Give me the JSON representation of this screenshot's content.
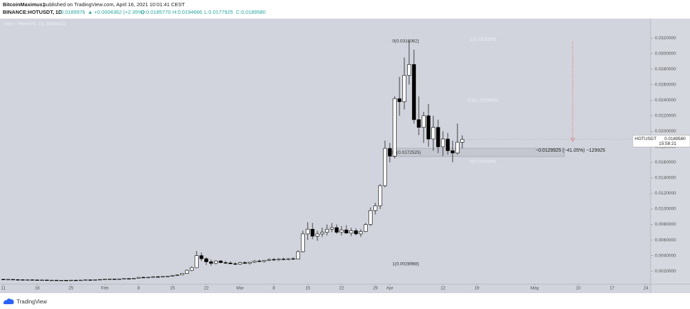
{
  "header": {
    "author": "BitcoinMaximus1",
    "published": "published on TradingView.com, April 16, 2021 10:01:41 CEST",
    "symbol": "BINANCE:HOTUSDT, 1D",
    "price": "0.0189976",
    "change": "▲ +0.0004362 (+2.35%)",
    "open": "O:0.0185770",
    "high": "H:0.0194666",
    "low": "L:0.0177925",
    "close": "C:0.0189580"
  },
  "footer": {
    "brand": "TradingView"
  },
  "chart_data": {
    "type": "candlestick",
    "watermark": "Holo / TetherUS, 1D, BINANCE",
    "x": [
      0,
      1,
      2,
      3,
      4,
      5,
      6,
      7,
      8,
      9,
      10,
      11,
      12,
      13,
      14,
      15,
      16,
      17,
      18,
      19,
      20,
      21,
      22,
      23,
      24,
      25,
      26,
      27,
      28,
      29,
      30,
      31,
      32,
      33,
      34,
      35,
      36,
      37,
      38,
      39,
      40,
      41,
      42,
      43,
      44,
      45,
      46,
      47,
      48,
      49,
      50,
      51,
      52,
      53,
      54,
      55,
      56,
      57,
      58,
      59,
      60,
      61,
      62,
      63,
      64,
      65,
      66,
      67,
      68,
      69,
      70,
      71,
      72,
      73,
      74,
      75,
      76,
      77,
      78,
      79,
      80,
      81,
      82,
      83,
      84,
      85,
      86,
      87,
      88,
      89,
      90,
      91,
      92,
      93,
      94,
      95
    ],
    "open": [
      0.00095,
      0.00092,
      0.00094,
      0.00091,
      0.0009,
      0.00088,
      0.00089,
      0.00087,
      0.00085,
      0.00086,
      0.00083,
      0.00084,
      0.00081,
      0.00083,
      0.00082,
      0.00084,
      0.00083,
      0.00085,
      0.00088,
      0.00087,
      0.0009,
      0.00093,
      0.00096,
      0.00098,
      0.00097,
      0.001,
      0.00104,
      0.00102,
      0.00108,
      0.0012,
      0.00116,
      0.00121,
      0.00128,
      0.00124,
      0.00131,
      0.00135,
      0.00145,
      0.00152,
      0.0017,
      0.0021,
      0.00245,
      0.004,
      0.0036,
      0.0032,
      0.003,
      0.0033,
      0.0031,
      0.00305,
      0.00295,
      0.0029,
      0.0031,
      0.003,
      0.00315,
      0.0033,
      0.00325,
      0.0034,
      0.0035,
      0.00345,
      0.00355,
      0.0035,
      0.0036,
      0.00355,
      0.0045,
      0.0068,
      0.0074,
      0.0065,
      0.0068,
      0.007,
      0.0074,
      0.0076,
      0.007,
      0.0073,
      0.0069,
      0.0072,
      0.0068,
      0.0071,
      0.008,
      0.0098,
      0.0104,
      0.013,
      0.0178,
      0.0168,
      0.0242,
      0.0238,
      0.0272,
      0.0286,
      0.0215,
      0.0205,
      0.022,
      0.019,
      0.0205,
      0.018,
      0.019,
      0.0175,
      0.0172,
      0.018577
    ],
    "high": [
      0.001,
      0.00098,
      0.00096,
      0.00095,
      0.00093,
      0.00092,
      0.00093,
      0.00091,
      0.00089,
      0.00088,
      0.00087,
      0.00086,
      0.00085,
      0.00086,
      0.00086,
      0.00088,
      0.00086,
      0.0009,
      0.00092,
      0.00091,
      0.00095,
      0.00098,
      0.001,
      0.00103,
      0.00102,
      0.00106,
      0.00108,
      0.0011,
      0.00125,
      0.0013,
      0.00124,
      0.00132,
      0.00136,
      0.00134,
      0.0014,
      0.0015,
      0.0016,
      0.00175,
      0.0022,
      0.0026,
      0.0046,
      0.0044,
      0.0038,
      0.0035,
      0.0034,
      0.00345,
      0.0033,
      0.00325,
      0.00315,
      0.0032,
      0.00325,
      0.0032,
      0.0034,
      0.0035,
      0.00345,
      0.00365,
      0.0037,
      0.00365,
      0.00375,
      0.0037,
      0.0038,
      0.0047,
      0.0072,
      0.0083,
      0.0082,
      0.0072,
      0.0076,
      0.008,
      0.0082,
      0.008,
      0.0078,
      0.0079,
      0.0076,
      0.0075,
      0.0074,
      0.0082,
      0.0102,
      0.0108,
      0.0132,
      0.0188,
      0.0185,
      0.0245,
      0.027,
      0.0295,
      0.0316062,
      0.0305,
      0.0245,
      0.0225,
      0.0235,
      0.022,
      0.0215,
      0.02,
      0.0198,
      0.0188,
      0.021,
      0.0194666
    ],
    "low": [
      0.00085,
      0.00088,
      0.00089,
      0.00087,
      0.00086,
      0.00085,
      0.00086,
      0.00083,
      0.00082,
      0.00081,
      0.0008,
      0.00079,
      0.00078,
      0.0008,
      0.00079,
      0.00081,
      0.0008,
      0.00083,
      0.00085,
      0.00084,
      0.00087,
      0.0009,
      0.00092,
      0.00094,
      0.00093,
      0.00096,
      0.00099,
      0.001,
      0.00104,
      0.00112,
      0.0011,
      0.00117,
      0.0012,
      0.0012,
      0.00125,
      0.0013,
      0.00138,
      0.00148,
      0.00165,
      0.002,
      0.0024,
      0.0033,
      0.0028,
      0.0027,
      0.00285,
      0.003,
      0.0029,
      0.0029,
      0.0028,
      0.0028,
      0.00295,
      0.00285,
      0.00305,
      0.00315,
      0.0031,
      0.0033,
      0.00335,
      0.0033,
      0.0034,
      0.0034,
      0.00345,
      0.0035,
      0.0044,
      0.006,
      0.0061,
      0.0059,
      0.0064,
      0.0066,
      0.007,
      0.0068,
      0.0066,
      0.0068,
      0.0065,
      0.0066,
      0.0064,
      0.007,
      0.0078,
      0.0093,
      0.01,
      0.0128,
      0.016,
      0.0165,
      0.022,
      0.0228,
      0.026,
      0.021,
      0.0195,
      0.0185,
      0.018,
      0.0175,
      0.0172,
      0.0168,
      0.017,
      0.016,
      0.017,
      0.0177925
    ],
    "close": [
      0.00092,
      0.00094,
      0.00091,
      0.0009,
      0.00088,
      0.00089,
      0.00087,
      0.00085,
      0.00086,
      0.00083,
      0.00084,
      0.00081,
      0.00083,
      0.00082,
      0.00084,
      0.00083,
      0.00085,
      0.00088,
      0.00087,
      0.0009,
      0.00093,
      0.00096,
      0.00098,
      0.00097,
      0.001,
      0.00104,
      0.00102,
      0.00108,
      0.0012,
      0.00116,
      0.00121,
      0.00128,
      0.00124,
      0.00131,
      0.00135,
      0.00145,
      0.00152,
      0.0017,
      0.0021,
      0.00245,
      0.004,
      0.0036,
      0.0032,
      0.003,
      0.0033,
      0.0031,
      0.00305,
      0.00295,
      0.0029,
      0.0031,
      0.003,
      0.00315,
      0.0033,
      0.00325,
      0.0034,
      0.0035,
      0.00345,
      0.00355,
      0.0035,
      0.0036,
      0.00355,
      0.0045,
      0.0068,
      0.0074,
      0.0065,
      0.0068,
      0.007,
      0.0074,
      0.0076,
      0.007,
      0.0073,
      0.0069,
      0.0072,
      0.0068,
      0.0071,
      0.008,
      0.0098,
      0.0104,
      0.013,
      0.0178,
      0.0168,
      0.0242,
      0.0238,
      0.0272,
      0.0286,
      0.0215,
      0.0205,
      0.022,
      0.019,
      0.0205,
      0.018,
      0.019,
      0.0175,
      0.0172,
      0.0186,
      0.018958
    ],
    "up_color": "#ffffff",
    "down_color": "#000000",
    "xlim": [
      -0.7,
      134
    ],
    "xticks": [
      {
        "value": 0,
        "label": "11"
      },
      {
        "value": 7,
        "label": "18"
      },
      {
        "value": 14,
        "label": "25"
      },
      {
        "value": 21,
        "label": "Feb"
      },
      {
        "value": 28,
        "label": "8"
      },
      {
        "value": 35,
        "label": "15"
      },
      {
        "value": 42,
        "label": "22"
      },
      {
        "value": 49,
        "label": "Mar"
      },
      {
        "value": 56,
        "label": "8"
      },
      {
        "value": 63,
        "label": "15"
      },
      {
        "value": 70,
        "label": "22"
      },
      {
        "value": 77,
        "label": "29"
      },
      {
        "value": 80,
        "label": "Apr"
      },
      {
        "value": 91,
        "label": "12"
      },
      {
        "value": 98,
        "label": "19"
      },
      {
        "value": 110,
        "label": "May"
      },
      {
        "value": 119,
        "label": "10"
      },
      {
        "value": 126,
        "label": "17"
      },
      {
        "value": 133,
        "label": "24"
      }
    ],
    "ylim": [
      0.0005,
      0.0345
    ],
    "yticks": [
      {
        "value": 0.002,
        "label": "0.0020000"
      },
      {
        "value": 0.004,
        "label": "0.0040000"
      },
      {
        "value": 0.006,
        "label": "0.0060000"
      },
      {
        "value": 0.008,
        "label": "0.0080000"
      },
      {
        "value": 0.01,
        "label": "0.0100000"
      },
      {
        "value": 0.012,
        "label": "0.0120000"
      },
      {
        "value": 0.014,
        "label": "0.0140000"
      },
      {
        "value": 0.016,
        "label": "0.0160000"
      },
      {
        "value": 0.018,
        "label": "0.0180000"
      },
      {
        "value": 0.02,
        "label": "0.0200000"
      },
      {
        "value": 0.022,
        "label": "0.0220000"
      },
      {
        "value": 0.024,
        "label": "0.0240000"
      },
      {
        "value": 0.026,
        "label": "0.0260000"
      },
      {
        "value": 0.028,
        "label": "0.0280000"
      },
      {
        "value": 0.03,
        "label": "0.0300000"
      },
      {
        "value": 0.032,
        "label": "0.0320000"
      }
    ],
    "grid": false,
    "last_price": {
      "name": "HOTUSDT",
      "value": 0.018958,
      "label": "0.0189580",
      "countdown": "15:58:21"
    },
    "fib_a": [
      {
        "value": 0.0316062,
        "label": "0(0.0316062)"
      },
      {
        "value": 0.0172525,
        "label": "0.5(0.0172525)"
      },
      {
        "value": 0.0028988,
        "label": "1(0.0028988)"
      }
    ],
    "fib_b": [
      {
        "value": 0.0318189,
        "label": "1(0.0318189)"
      },
      {
        "value": 0.0239563,
        "label": "0.5(0.0239563)"
      },
      {
        "value": 0.0160936,
        "label": "0(0.0160936)"
      }
    ],
    "measure_label": "−0.0129925 (−41.05%) −129925"
  }
}
